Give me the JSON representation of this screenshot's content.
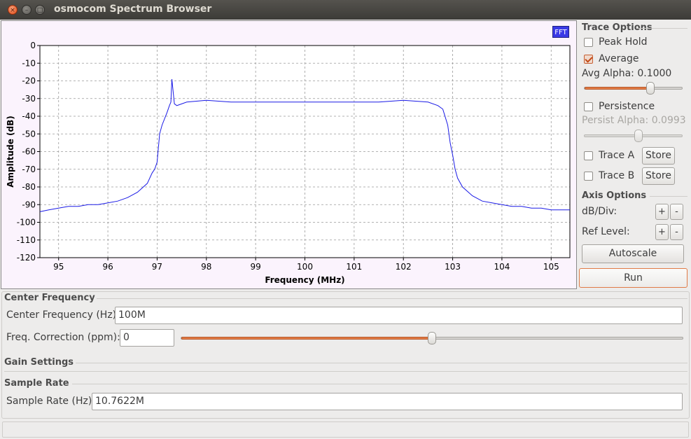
{
  "window": {
    "title": "osmocom Spectrum Browser",
    "close_glyph": "×",
    "min_glyph": "–",
    "max_glyph": "□"
  },
  "plot": {
    "badge": "FFT",
    "trace_color": "#1a1ae6",
    "background": "#fbf3fd"
  },
  "chart_data": {
    "type": "line",
    "xlabel": "Frequency (MHz)",
    "ylabel": "Amplitude (dB)",
    "xlim": [
      94.62,
      105.38
    ],
    "ylim": [
      -120,
      0
    ],
    "xticks": [
      95,
      96,
      97,
      98,
      99,
      100,
      101,
      102,
      103,
      104,
      105
    ],
    "yticks": [
      0,
      -10,
      -20,
      -30,
      -40,
      -50,
      -60,
      -70,
      -80,
      -90,
      -100,
      -110,
      -120
    ],
    "grid": true,
    "series": [
      {
        "x": [
          94.62,
          94.8,
          95.0,
          95.2,
          95.4,
          95.6,
          95.8,
          96.0,
          96.2,
          96.4,
          96.6,
          96.8,
          96.9,
          96.95,
          97.0,
          97.05,
          97.1,
          97.2,
          97.25,
          97.28,
          97.3,
          97.35,
          97.4,
          97.6,
          98.0,
          98.5,
          99.0,
          99.5,
          100.0,
          100.5,
          101.0,
          101.5,
          102.0,
          102.5,
          102.7,
          102.8,
          102.9,
          102.95,
          103.0,
          103.05,
          103.1,
          103.2,
          103.4,
          103.6,
          103.8,
          104.0,
          104.2,
          104.4,
          104.6,
          104.8,
          105.0,
          105.2,
          105.38
        ],
        "y": [
          -94,
          -93,
          -92,
          -91,
          -91,
          -90,
          -90,
          -89,
          -88,
          -86,
          -83,
          -78,
          -72,
          -70,
          -66,
          -50,
          -45,
          -38,
          -34,
          -32,
          -19,
          -33,
          -34,
          -32,
          -31,
          -32,
          -32,
          -32,
          -32,
          -32,
          -32,
          -32,
          -31,
          -32,
          -34,
          -36,
          -45,
          -55,
          -62,
          -70,
          -75,
          -80,
          -85,
          -88,
          -89,
          -90,
          -91,
          -91,
          -92,
          -92,
          -93,
          -93,
          -93
        ]
      }
    ]
  },
  "trace_options": {
    "title": "Trace Options",
    "peak_hold": {
      "label": "Peak Hold",
      "checked": false
    },
    "average": {
      "label": "Average",
      "checked": true
    },
    "avg_alpha": {
      "label": "Avg Alpha: 0.1000",
      "level": 0.75
    },
    "persistence": {
      "label": "Persistence",
      "checked": false
    },
    "persist_alpha": {
      "label": "Persist Alpha: 0.0993",
      "level": 0.5
    },
    "trace_a": {
      "label": "Trace A",
      "button": "Store"
    },
    "trace_b": {
      "label": "Trace B",
      "button": "Store"
    }
  },
  "axis_options": {
    "title": "Axis Options",
    "db_div": {
      "label": "dB/Div:",
      "plus": "+",
      "minus": "-"
    },
    "ref_level": {
      "label": "Ref Level:",
      "plus": "+",
      "minus": "-"
    },
    "autoscale": "Autoscale",
    "run": "Run"
  },
  "center_frequency": {
    "title": "Center Frequency",
    "freq_label": "Center Frequency (Hz):",
    "freq_value": "100M",
    "corr_label": "Freq. Correction (ppm):",
    "corr_value": "0",
    "corr_level": 0.5
  },
  "gain_settings": {
    "title": "Gain Settings"
  },
  "sample_rate": {
    "title": "Sample Rate",
    "label": "Sample Rate (Hz):",
    "value": "10.7622M"
  }
}
